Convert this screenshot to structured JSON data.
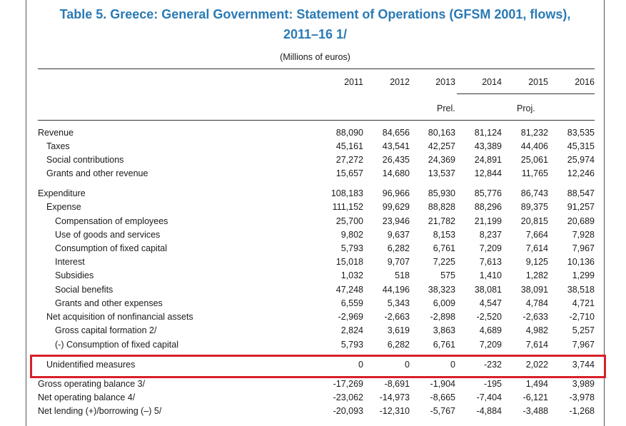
{
  "title": {
    "line1": "Table 5. Greece: General Government: Statement of Operations (GFSM 2001, flows),",
    "line2": "2011–16 1/"
  },
  "units": "(Millions of euros)",
  "years": [
    "2011",
    "2012",
    "2013",
    "2014",
    "2015",
    "2016"
  ],
  "subheaders": {
    "prel": "Prel.",
    "proj": "Proj."
  },
  "rows": [
    {
      "label": "Revenue",
      "values": [
        "88,090",
        "84,656",
        "80,163",
        "81,124",
        "81,232",
        "83,535"
      ]
    },
    {
      "label": "Taxes",
      "values": [
        "45,161",
        "43,541",
        "42,257",
        "43,389",
        "44,406",
        "45,315"
      ]
    },
    {
      "label": "Social contributions",
      "values": [
        "27,272",
        "26,435",
        "24,369",
        "24,891",
        "25,061",
        "25,974"
      ]
    },
    {
      "label": "Grants and other revenue",
      "values": [
        "15,657",
        "14,680",
        "13,537",
        "12,844",
        "11,765",
        "12,246"
      ]
    },
    {
      "label": "Expenditure",
      "values": [
        "108,183",
        "96,966",
        "85,930",
        "85,776",
        "86,743",
        "88,547"
      ]
    },
    {
      "label": "Expense",
      "values": [
        "111,152",
        "99,629",
        "88,828",
        "88,296",
        "89,375",
        "91,257"
      ]
    },
    {
      "label": "Compensation of employees",
      "values": [
        "25,700",
        "23,946",
        "21,782",
        "21,199",
        "20,815",
        "20,689"
      ]
    },
    {
      "label": "Use of goods and services",
      "values": [
        "9,802",
        "9,637",
        "8,153",
        "8,237",
        "7,664",
        "7,928"
      ]
    },
    {
      "label": "Consumption of fixed capital",
      "values": [
        "5,793",
        "6,282",
        "6,761",
        "7,209",
        "7,614",
        "7,967"
      ]
    },
    {
      "label": "Interest",
      "values": [
        "15,018",
        "9,707",
        "7,225",
        "7,613",
        "9,125",
        "10,136"
      ]
    },
    {
      "label": "Subsidies",
      "values": [
        "1,032",
        "518",
        "575",
        "1,410",
        "1,282",
        "1,299"
      ]
    },
    {
      "label": "Social benefits",
      "values": [
        "47,248",
        "44,196",
        "38,323",
        "38,081",
        "38,091",
        "38,518"
      ]
    },
    {
      "label": "Grants and other expenses",
      "values": [
        "6,559",
        "5,343",
        "6,009",
        "4,547",
        "4,784",
        "4,721"
      ]
    },
    {
      "label": "Net acquisition of nonfinancial assets",
      "values": [
        "-2,969",
        "-2,663",
        "-2,898",
        "-2,520",
        "-2,633",
        "-2,710"
      ]
    },
    {
      "label": "Gross capital formation 2/",
      "values": [
        "2,824",
        "3,619",
        "3,863",
        "4,689",
        "4,982",
        "5,257"
      ]
    },
    {
      "label": "(-) Consumption of fixed capital",
      "values": [
        "5,793",
        "6,282",
        "6,761",
        "7,209",
        "7,614",
        "7,967"
      ]
    },
    {
      "label": "Unidentified measures",
      "values": [
        "0",
        "0",
        "0",
        "-232",
        "2,022",
        "3,744"
      ]
    },
    {
      "label": "Gross operating balance 3/",
      "values": [
        "-17,269",
        "-8,691",
        "-1,904",
        "-195",
        "1,494",
        "3,989"
      ]
    },
    {
      "label": "Net operating balance 4/",
      "values": [
        "-23,062",
        "-14,973",
        "-8,665",
        "-7,404",
        "-6,121",
        "-3,978"
      ]
    },
    {
      "label": "Net lending (+)/borrowing (–) 5/",
      "values": [
        "-20,093",
        "-12,310",
        "-5,767",
        "-4,884",
        "-3,488",
        "-1,268"
      ]
    }
  ]
}
